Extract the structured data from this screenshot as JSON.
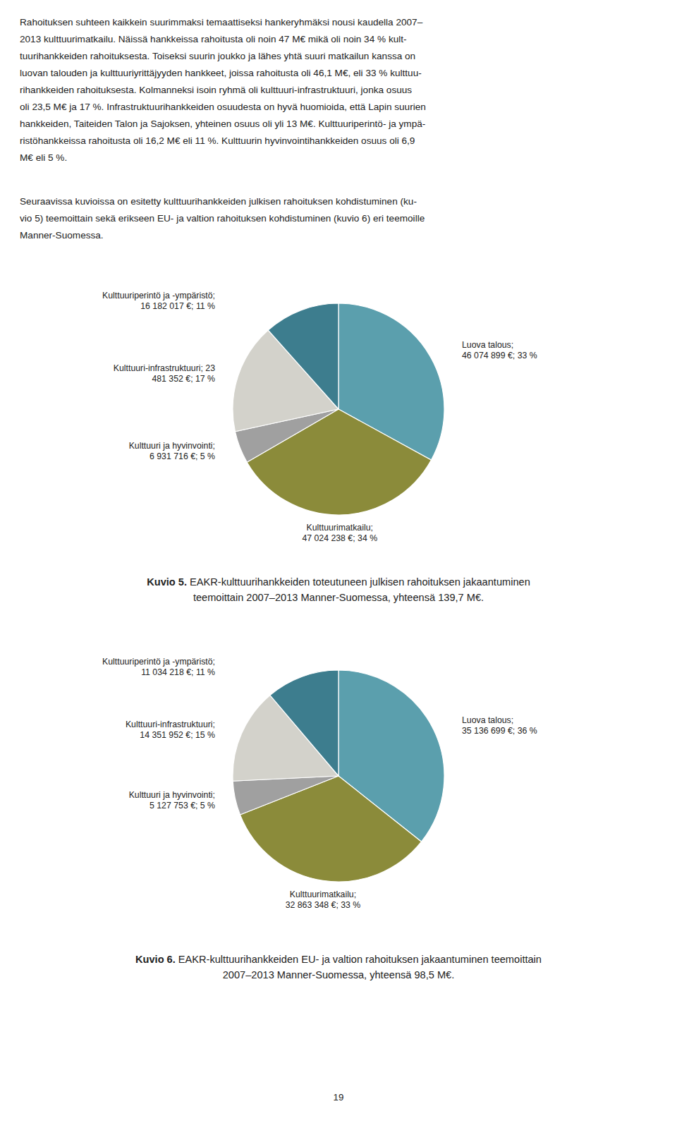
{
  "paragraphs": [
    [
      "Rahoituksen suhteen kaikkein suurimmaksi temaattiseksi hankeryhmäksi nousi kaudella 2007–",
      "2013 kulttuurimatkailu. Näissä hankkeissa rahoitusta oli noin 47 M€ mikä oli noin 34 % kult-",
      "tuurihankkeiden rahoituksesta. Toiseksi suurin joukko ja lähes yhtä suuri matkailun kanssa on",
      "luovan talouden ja kulttuuriyrittäjyyden hankkeet, joissa rahoitusta oli 46,1 M€, eli 33 % kulttuu-",
      "rihankkeiden rahoituksesta. Kolmanneksi isoin ryhmä oli kulttuuri-infrastruktuuri, jonka osuus",
      "oli 23,5 M€ ja 17 %. Infrastruktuurihankkeiden osuudesta on hyvä huomioida, että Lapin suurien",
      "hankkeiden, Taiteiden Talon ja Sajoksen, yhteinen osuus oli yli 13 M€. Kulttuuriperintö- ja ympä-",
      "ristöhankkeissa rahoitusta oli 16,2 M€ eli 11 %. Kulttuurin hyvinvointihankkeiden osuus oli 6,9",
      "M€ eli 5 %."
    ],
    [
      "Seuraavissa kuvioissa on esitetty kulttuurihankkeiden julkisen rahoituksen kohdistuminen (ku-",
      "vio 5) teemoittain sekä erikseen EU- ja valtion rahoituksen kohdistuminen (kuvio 6) eri teemoille",
      "Manner-Suomessa."
    ]
  ],
  "chart_data": [
    {
      "type": "pie",
      "title_label": "Kuvio 5.",
      "title_lines": [
        " EAKR-kulttuurihankkeiden toteutuneen julkisen rahoituksen jakaantuminen",
        "teemoittain 2007–2013 Manner-Suomessa, yhteensä 139,7 M€."
      ],
      "values": [
        46074899,
        47024238,
        6931716,
        23481352,
        16182017
      ],
      "value_labels": [
        "Luova talous;\n46 074 899 €; 33 %",
        "Kulttuurimatkailu;\n47 024 238 €; 34 %",
        "Kulttuuri ja hyvinvointi;\n6 931 716 €; 5 %",
        "Kulttuuri-infrastruktuuri; 23\n481 352 €; 17 %",
        "Kulttuuriperintö ja -ympäristö;\n16 182 017 €; 11 %"
      ],
      "colors": [
        "#5b9fad",
        "#8b8b3a",
        "#a0a0a0",
        "#d3d2cb",
        "#3d7d8e"
      ],
      "data_labels": true
    },
    {
      "type": "pie",
      "title_label": "Kuvio 6.",
      "title_lines": [
        " EAKR-kulttuurihankkeiden EU- ja valtion rahoituksen jakaantuminen teemoittain",
        "2007–2013 Manner-Suomessa, yhteensä 98,5 M€."
      ],
      "values": [
        35136699,
        32863348,
        5127753,
        14351952,
        11034218
      ],
      "value_labels": [
        "Luova talous;\n35 136 699 €; 36 %",
        "Kulttuurimatkailu;\n32 863 348 €; 33 %",
        "Kulttuuri ja hyvinvointi;\n5 127 753 €; 5 %",
        "Kulttuuri-infrastruktuuri;\n14 351 952 €; 15 %",
        "Kulttuuriperintö ja -ympäristö;\n11 034 218 €; 11 %"
      ],
      "colors": [
        "#5b9fad",
        "#8b8b3a",
        "#a0a0a0",
        "#d3d2cb",
        "#3d7d8e"
      ],
      "data_labels": true
    }
  ],
  "page_number": "19"
}
